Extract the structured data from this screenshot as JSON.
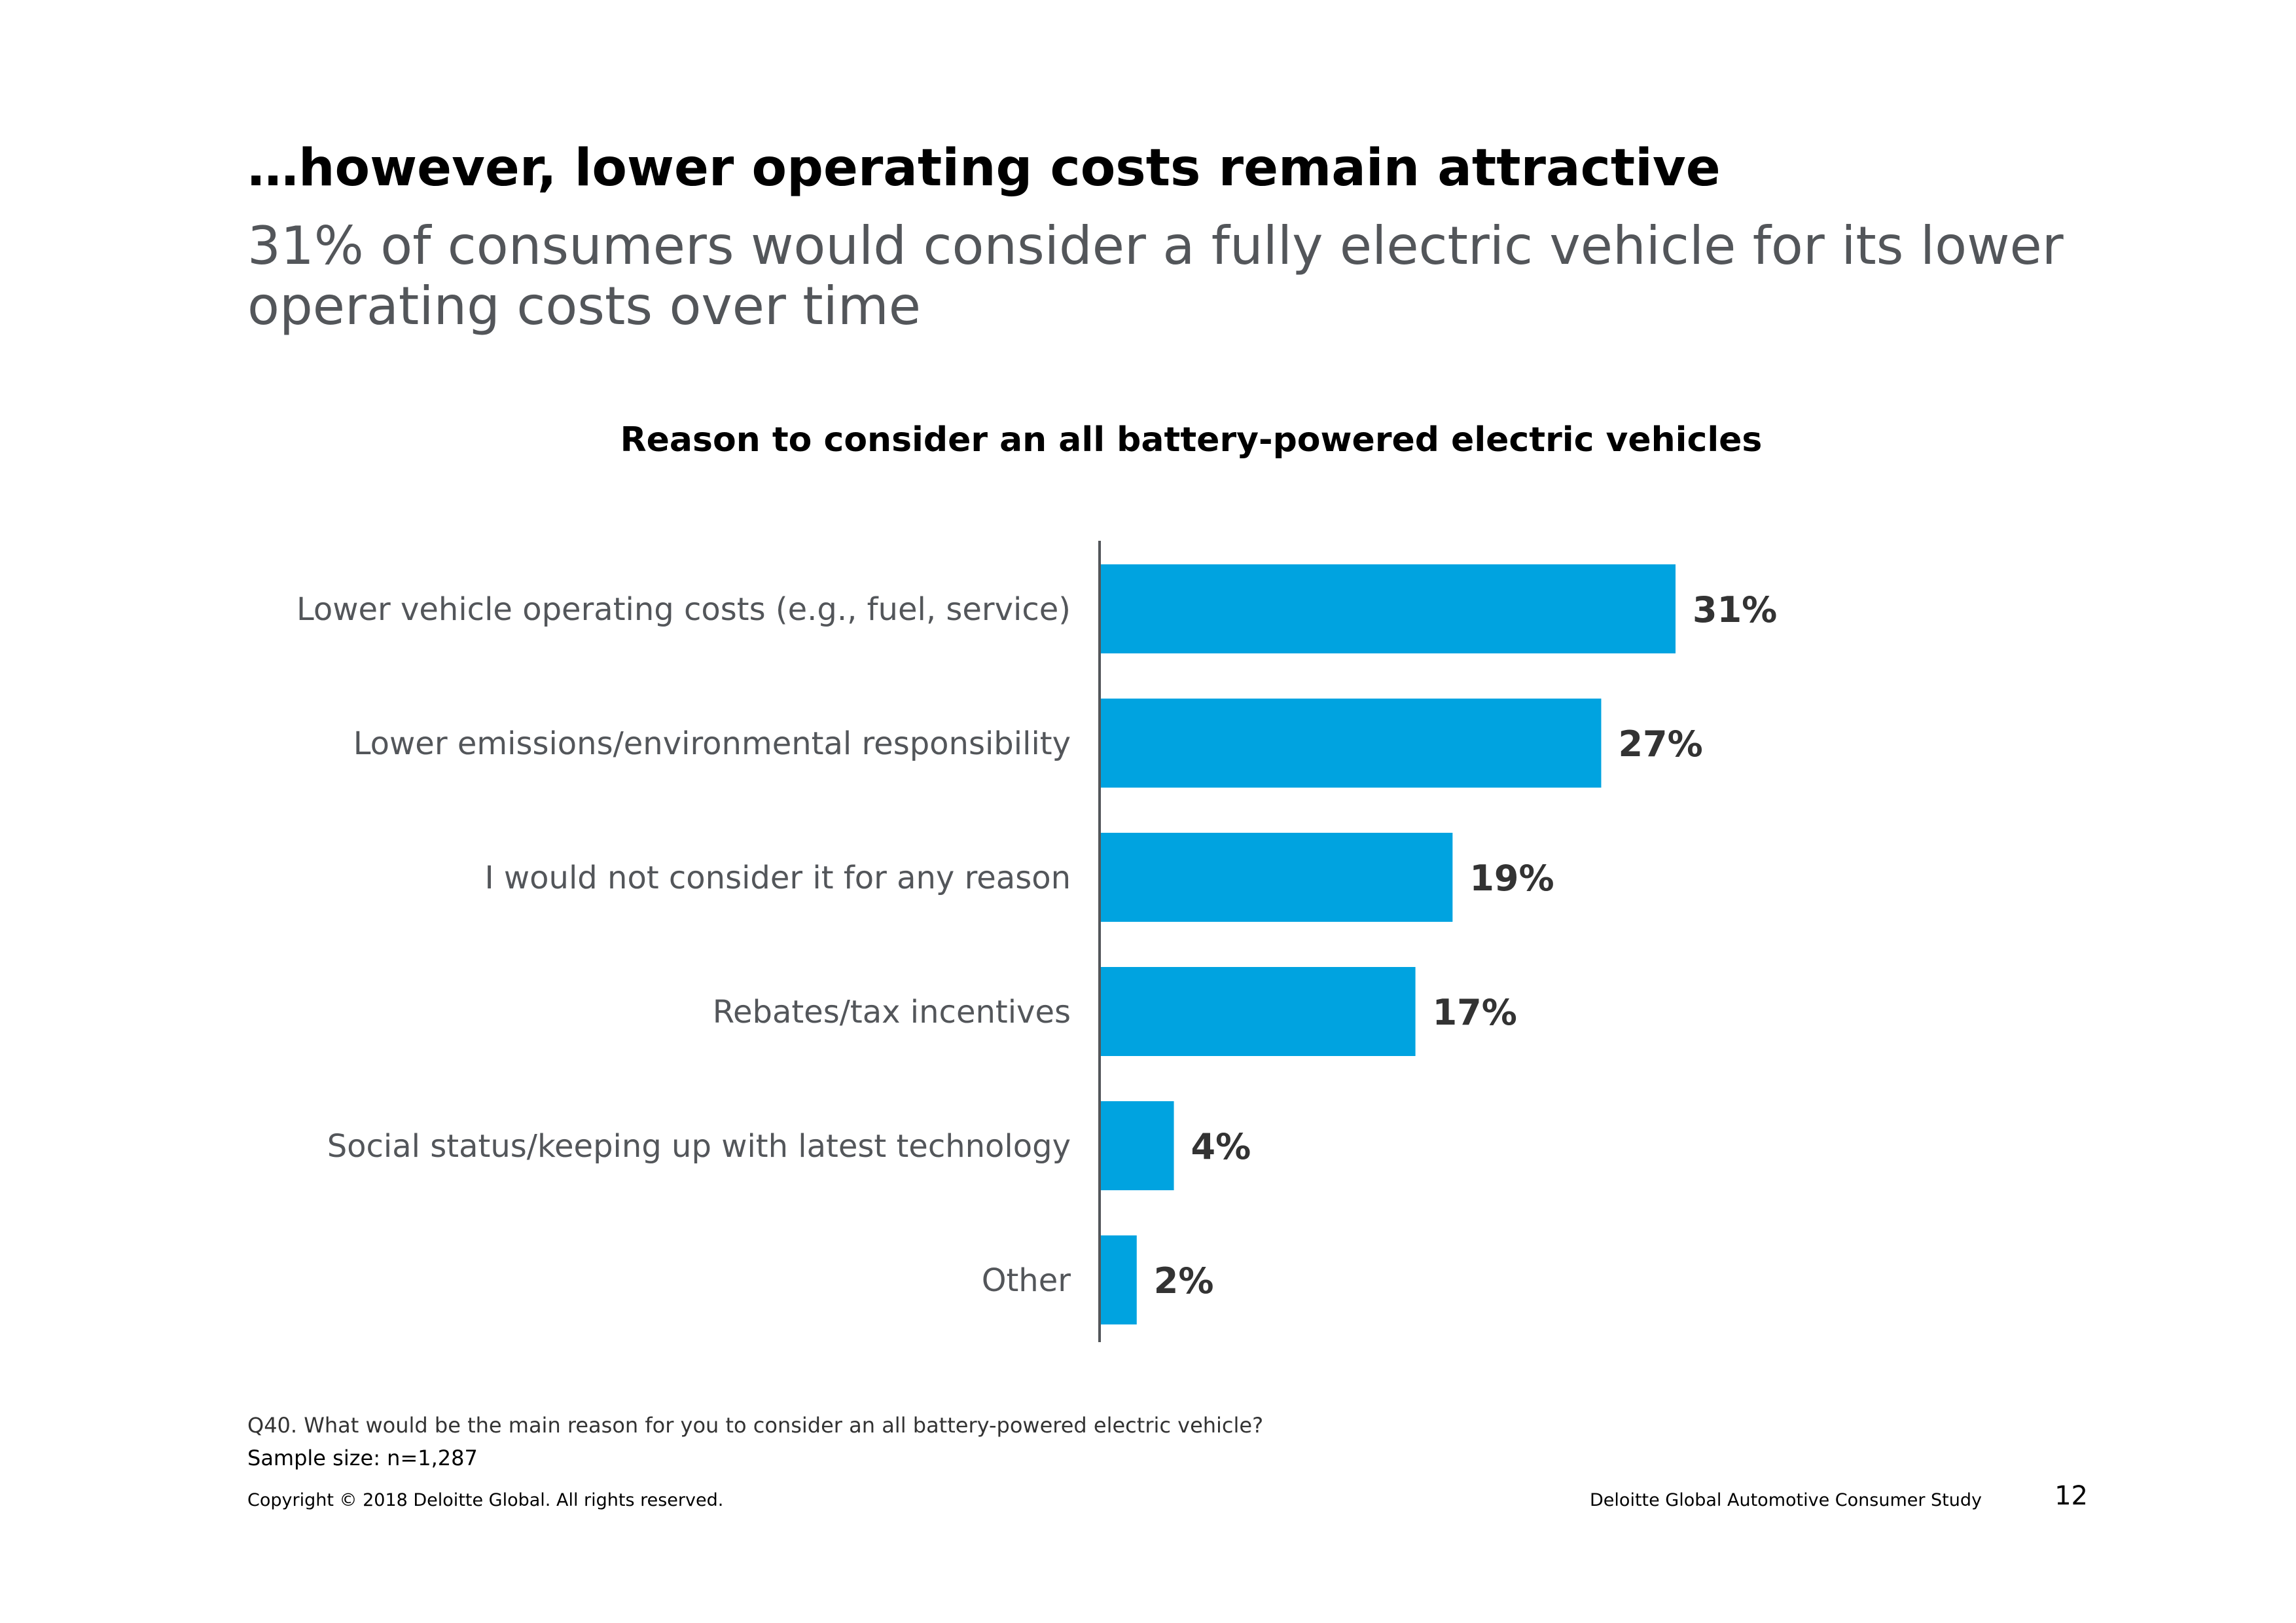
{
  "slide": {
    "headline": "…however, lower operating costs remain attractive",
    "subheadline": "31% of consumers would consider a fully electric vehicle for its lower operating costs over time",
    "question_note": "Q40. What would be the main reason for you to consider an all battery-powered electric vehicle?",
    "sample_size": "Sample size: n=1,287",
    "copyright": "Copyright © 2018 Deloitte Global. All rights reserved.",
    "study_name": "Deloitte Global Automotive Consumer Study",
    "page_number": "12"
  },
  "colors": {
    "bar": "#00a3e0",
    "category_label": "#53565a",
    "value_label": "#333333",
    "axis": "#53565a"
  },
  "chart_data": {
    "type": "bar",
    "orientation": "horizontal",
    "title": "Reason to consider an all battery-powered electric vehicles",
    "categories": [
      "Lower vehicle operating costs (e.g., fuel, service)",
      "Lower emissions/environmental responsibility",
      "I would not consider it for any reason",
      "Rebates/tax incentives",
      "Social status/keeping up with latest technology",
      "Other"
    ],
    "values": [
      31,
      27,
      19,
      17,
      4,
      2
    ],
    "value_labels": [
      "31%",
      "27%",
      "19%",
      "17%",
      "4%",
      "2%"
    ],
    "unit": "%",
    "xlim": [
      0,
      31
    ],
    "grid": false,
    "legend": "none"
  }
}
